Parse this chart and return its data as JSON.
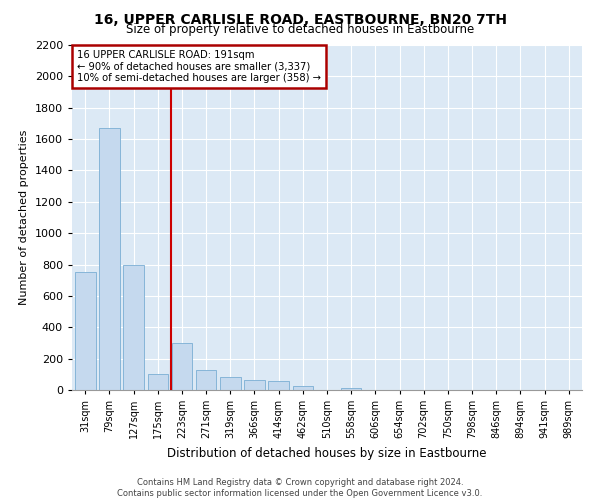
{
  "title": "16, UPPER CARLISLE ROAD, EASTBOURNE, BN20 7TH",
  "subtitle": "Size of property relative to detached houses in Eastbourne",
  "xlabel": "Distribution of detached houses by size in Eastbourne",
  "ylabel": "Number of detached properties",
  "footnote": "Contains HM Land Registry data © Crown copyright and database right 2024.\nContains public sector information licensed under the Open Government Licence v3.0.",
  "categories": [
    "31sqm",
    "79sqm",
    "127sqm",
    "175sqm",
    "223sqm",
    "271sqm",
    "319sqm",
    "366sqm",
    "414sqm",
    "462sqm",
    "510sqm",
    "558sqm",
    "606sqm",
    "654sqm",
    "702sqm",
    "750sqm",
    "798sqm",
    "846sqm",
    "894sqm",
    "941sqm",
    "989sqm"
  ],
  "values": [
    755,
    1670,
    800,
    100,
    300,
    130,
    80,
    65,
    55,
    28,
    0,
    14,
    0,
    0,
    0,
    0,
    0,
    0,
    0,
    0,
    0
  ],
  "bar_color": "#c5d9ee",
  "bar_edge_color": "#7aaed4",
  "background_color": "#dce9f5",
  "grid_color": "#ffffff",
  "red_line_x": 3.55,
  "annotation_text": "16 UPPER CARLISLE ROAD: 191sqm\n← 90% of detached houses are smaller (3,337)\n10% of semi-detached houses are larger (358) →",
  "annotation_box_color": "#aa0000",
  "ylim": [
    0,
    2200
  ],
  "yticks": [
    0,
    200,
    400,
    600,
    800,
    1000,
    1200,
    1400,
    1600,
    1800,
    2000,
    2200
  ]
}
